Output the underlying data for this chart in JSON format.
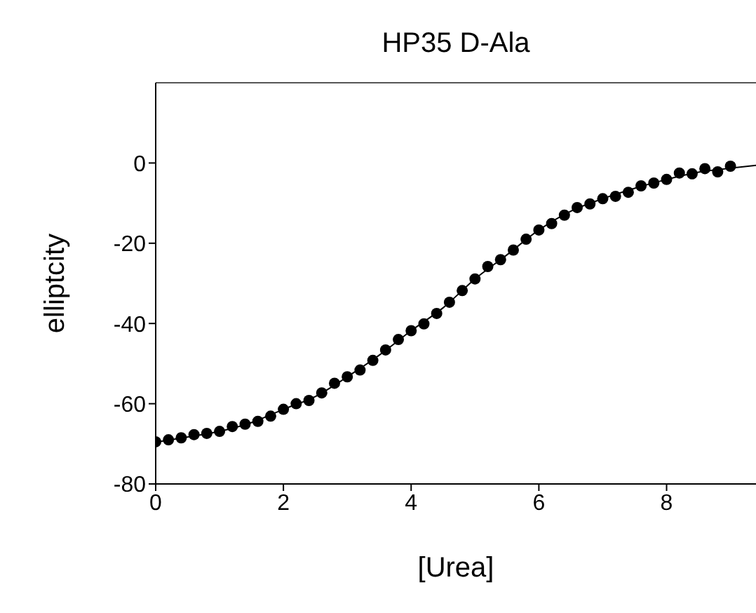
{
  "chart_data": {
    "type": "scatter",
    "title": "HP35 D-Ala",
    "xlabel": "[Urea]",
    "ylabel": "elliptcity",
    "xlim": [
      0,
      9.4
    ],
    "xticks": [
      0,
      2,
      4,
      6,
      8
    ],
    "ylim": [
      -80,
      20
    ],
    "yticks": [
      -80,
      -60,
      -40,
      -20,
      0
    ],
    "marker": "circle",
    "series": [
      {
        "color": "#000000",
        "x": [
          0,
          0.2,
          0.4,
          0.6,
          0.8,
          1.0,
          1.2,
          1.4,
          1.6,
          1.8,
          2.0,
          2.2,
          2.4,
          2.6,
          2.8,
          3.0,
          3.2,
          3.4,
          3.6,
          3.8,
          4.0,
          4.2,
          4.4,
          4.6,
          4.8,
          5.0,
          5.2,
          5.4,
          5.6,
          5.8,
          6.0,
          6.2,
          6.4,
          6.6,
          6.8,
          7.0,
          7.2,
          7.4,
          7.6,
          7.8,
          8.0,
          8.2,
          8.4,
          8.6,
          8.8,
          9.0
        ],
        "values": [
          -69.5,
          -69.0,
          -68.5,
          -67.7,
          -67.4,
          -66.9,
          -65.7,
          -65.1,
          -64.4,
          -63.1,
          -61.4,
          -60.0,
          -59.2,
          -57.3,
          -54.9,
          -53.3,
          -51.6,
          -49.2,
          -46.6,
          -44.0,
          -41.8,
          -40.1,
          -37.5,
          -34.7,
          -31.8,
          -28.9,
          -25.8,
          -24.1,
          -21.7,
          -19.0,
          -16.7,
          -15.1,
          -13.0,
          -11.1,
          -10.2,
          -8.9,
          -8.3,
          -7.3,
          -5.7,
          -5.0,
          -4.1,
          -2.5,
          -2.7,
          -1.4,
          -2.2,
          -0.8
        ]
      },
      {
        "type": "line",
        "color": "#000000",
        "marker": "none",
        "x": [
          0,
          0.5,
          1,
          1.5,
          2,
          2.5,
          3,
          3.5,
          4,
          4.5,
          5,
          5.5,
          6,
          6.5,
          7,
          7.5,
          8,
          8.5,
          9,
          9.4
        ],
        "values": [
          -69.6,
          -68.3,
          -66.9,
          -64.7,
          -61.4,
          -58.2,
          -53.3,
          -47.9,
          -41.8,
          -36.1,
          -28.9,
          -22.9,
          -16.7,
          -12.0,
          -8.9,
          -6.3,
          -4.1,
          -2.3,
          -1.3,
          -0.6
        ]
      }
    ]
  }
}
